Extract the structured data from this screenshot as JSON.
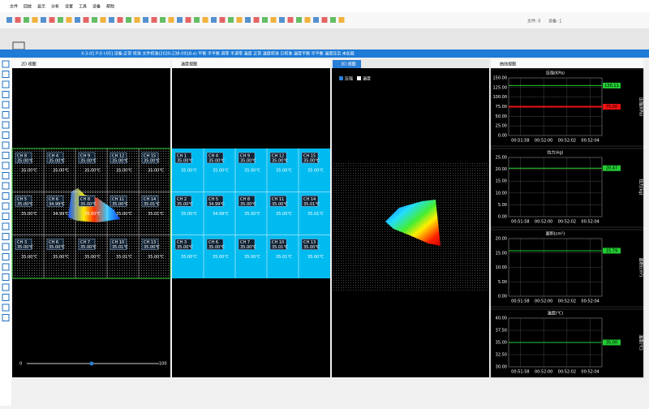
{
  "menu": [
    "文件",
    "回放",
    "显示",
    "分析",
    "设置",
    "工具",
    "设备",
    "帮助"
  ],
  "toolbar_status": [
    "文件: 0",
    "设备: 1"
  ],
  "status_bar": "X:3-01 P:0 I:05] 设备:正常 校准 文件校准(2020-238-0918-x) 平衡 半平衡 调零 半调零 温度 正常 温度校准 已校准 温度平衡 半平衡 温度压目 未加载",
  "panels": {
    "view2d": {
      "title": "2D 视图",
      "slider": {
        "min": 0,
        "max": 100,
        "value": 49
      },
      "cells": [
        {
          "label": "CH 8",
          "temp": "35.00℃"
        },
        {
          "label": "CH 4",
          "temp": "35.00℃"
        },
        {
          "label": "CH 9",
          "temp": "35.00℃"
        },
        {
          "label": "CH 12",
          "temp": "35.00℃"
        },
        {
          "label": "CH 15",
          "temp": "35.00℃"
        },
        {
          "label": "CH 5",
          "temp": "35.00℃"
        },
        {
          "label": "CH 6",
          "temp": "34.99℃"
        },
        {
          "label": "CH 8",
          "temp": "35.00℃"
        },
        {
          "label": "CH 11",
          "temp": "35.00℃"
        },
        {
          "label": "CH 14",
          "temp": "35.01℃"
        },
        {
          "label": "CH 3",
          "temp": "35.00℃"
        },
        {
          "label": "CH 6",
          "temp": "35.00℃"
        },
        {
          "label": "CH 7",
          "temp": "35.00℃"
        },
        {
          "label": "CH 10",
          "temp": "35.01℃"
        },
        {
          "label": "CH 13",
          "temp": "35.00℃"
        }
      ]
    },
    "temp_view": {
      "title": "温度视图",
      "cells": [
        {
          "label": "CH 1",
          "temp": "35.00℃"
        },
        {
          "label": "CH 4",
          "temp": "35.00℃"
        },
        {
          "label": "CH 9",
          "temp": "35.00℃"
        },
        {
          "label": "CH 12",
          "temp": "35.00℃"
        },
        {
          "label": "CH 15",
          "temp": "35.00℃"
        },
        {
          "label": "CH 2",
          "temp": "35.00℃"
        },
        {
          "label": "CH 5",
          "temp": "34.99℃"
        },
        {
          "label": "CH 8",
          "temp": "35.00℃"
        },
        {
          "label": "CH 11",
          "temp": "35.00℃"
        },
        {
          "label": "CH 14",
          "temp": "35.01℃"
        },
        {
          "label": "CH 3",
          "temp": "35.00℃"
        },
        {
          "label": "CH 6",
          "temp": "35.00℃"
        },
        {
          "label": "CH 7",
          "temp": "35.00℃"
        },
        {
          "label": "CH 10",
          "temp": "35.01℃"
        },
        {
          "label": "CH 13",
          "temp": "35.00℃"
        }
      ]
    },
    "view3d": {
      "title": "3D 视图",
      "legend": [
        "压强",
        "温度"
      ]
    },
    "curves": {
      "title": "曲线视图"
    }
  },
  "chart_data": [
    {
      "type": "line",
      "title": "压强(KPa)",
      "ylabel": "压强(KPa)",
      "ylim": [
        0,
        150
      ],
      "yticks": [
        {
          "value": 0,
          "label": "0.00"
        },
        {
          "value": 25,
          "label": "25.00"
        },
        {
          "value": 50,
          "label": "50.00"
        },
        {
          "value": 75,
          "label": "75.00"
        },
        {
          "value": 100,
          "label": "100.00"
        },
        {
          "value": 125,
          "label": "125.00"
        },
        {
          "value": 150,
          "label": "150.00"
        }
      ],
      "xticks": [
        "00:51:58",
        "00:52:00",
        "00:52:02",
        "00:52:04"
      ],
      "series": [
        {
          "color": "#22cc33",
          "values": [
            130.11,
            130.11,
            130.11,
            130.11,
            130.11,
            130.11,
            130.11,
            130.11
          ],
          "value_labels": [
            "130.11",
            "130.11",
            "130.11",
            "130.11",
            "130.11",
            "130.11",
            "130.11",
            "130.11"
          ]
        },
        {
          "color": "#ee1111",
          "values": [
            75,
            75,
            75,
            75,
            75,
            75,
            75,
            75
          ],
          "value_labels": [
            "75.00",
            "75.00",
            "75.00",
            "75.00",
            "75.00",
            "75.00",
            "75.00",
            "75.00"
          ]
        }
      ]
    },
    {
      "type": "line",
      "title": "拉力(kg)",
      "ylabel": "拉力(kg)",
      "ylim": [
        0,
        25
      ],
      "yticks": [
        {
          "value": 0,
          "label": "0.00"
        },
        {
          "value": 5,
          "label": "5.00"
        },
        {
          "value": 10,
          "label": "10.00"
        },
        {
          "value": 15,
          "label": "15.00"
        },
        {
          "value": 20,
          "label": "20.00"
        },
        {
          "value": 25,
          "label": "25.00"
        }
      ],
      "xticks": [
        "00:51:58",
        "00:52:00",
        "00:52:02",
        "00:52:04"
      ],
      "series": [
        {
          "color": "#22cc33",
          "values": [
            20.47,
            20.47,
            20.47,
            20.47,
            20.47,
            20.47,
            20.47,
            20.47
          ],
          "value_labels": [
            "20.47",
            "20.47",
            "20.47",
            "20.47",
            "20.47",
            "20.47",
            "20.47",
            "20.47"
          ]
        }
      ]
    },
    {
      "type": "line",
      "title": "面积(cm²)",
      "ylabel": "面积(cm²)",
      "ylim": [
        0,
        20
      ],
      "yticks": [
        {
          "value": 0,
          "label": "0.00"
        },
        {
          "value": 5,
          "label": "5.00"
        },
        {
          "value": 10,
          "label": "10.00"
        },
        {
          "value": 15,
          "label": "15.00"
        },
        {
          "value": 20,
          "label": "20.00"
        }
      ],
      "xticks": [
        "00:51:58",
        "00:52:00",
        "00:52:02",
        "00:52:04"
      ],
      "series": [
        {
          "color": "#22cc33",
          "values": [
            15.79,
            15.79,
            15.79,
            15.79,
            15.79,
            15.79,
            15.79,
            15.79
          ],
          "value_labels": [
            "15.79",
            "15.79",
            "15.79",
            "15.79",
            "15.79",
            "15.79",
            "15.79",
            "15.79"
          ]
        }
      ]
    },
    {
      "type": "line",
      "title": "温度(℃)",
      "ylabel": "温度(℃)",
      "ylim": [
        30,
        40
      ],
      "yticks": [
        {
          "value": 30,
          "label": "30.00"
        },
        {
          "value": 32.5,
          "label": "32.50"
        },
        {
          "value": 35,
          "label": "35.00"
        },
        {
          "value": 37.5,
          "label": "37.50"
        },
        {
          "value": 40,
          "label": "40.00"
        }
      ],
      "xticks": [
        "00:51:58",
        "00:52:00",
        "00:52:02",
        "00:52:04"
      ],
      "series": [
        {
          "color": "#22cc33",
          "values": [
            35,
            35,
            35,
            35,
            35,
            35,
            35,
            35
          ],
          "value_labels": [
            "35.00",
            "35.00",
            "35.00",
            "35.00",
            "35.00",
            "35.00",
            "35.00",
            "35.00"
          ]
        }
      ]
    }
  ]
}
